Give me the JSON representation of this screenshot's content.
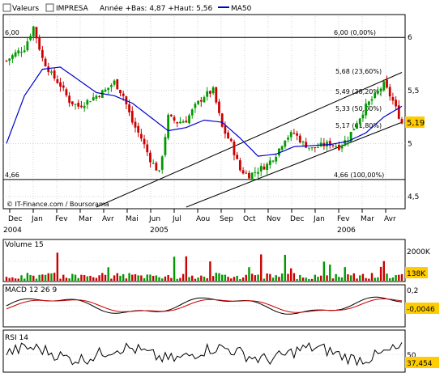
{
  "header": {
    "checkbox_label": "Valeurs",
    "security": "IMPRESA",
    "stats": "Année +Bas: 4,87 +Haut: 5,56",
    "ma_label": "MA50"
  },
  "colors": {
    "up": "#009a00",
    "down": "#cc0000",
    "ma": "#0000cc",
    "macd_signal": "#cc0000",
    "price_tag_bg": "#ffcc00",
    "volume_tag_bg": "#ffcc00",
    "grid": "#bbbbbb"
  },
  "copyright": "© IT-Finance.com / Boursorama",
  "price_panel": {
    "y_ticks": [
      "6",
      "5,5",
      "5",
      "4,5"
    ],
    "hlines": [
      {
        "value": 6.0,
        "left_label": "6,00",
        "right_label": "6,00 (0,00%)"
      },
      {
        "value": 4.66,
        "left_label": "4,66",
        "right_label": "4,66 (100,00%)"
      }
    ],
    "fib_levels": [
      {
        "value": 5.68,
        "label": "5,68 (23,60%)"
      },
      {
        "value": 5.49,
        "label": "5,49 (38,20%)"
      },
      {
        "value": 5.33,
        "label": "5,33 (50,00%)"
      },
      {
        "value": 5.17,
        "label": "5,17 (61,80%)"
      }
    ],
    "last_price": "5,19"
  },
  "x_axis": {
    "months": [
      "Dec",
      "Jan",
      "Fev",
      "Mar",
      "Avr",
      "Mai",
      "Jun",
      "Jul",
      "Aou",
      "Sep",
      "Oct",
      "Nov",
      "Dec",
      "Jan",
      "Fev",
      "Mar",
      "Avr"
    ],
    "years": [
      "2004",
      "2005",
      "2006"
    ]
  },
  "volume_panel": {
    "title": "Volume 15",
    "axis_label": "2000K",
    "last_value": "138K"
  },
  "macd_panel": {
    "title": "MACD 12 26 9",
    "axis_label": "0,2",
    "last_value": "-0,0046"
  },
  "rsi_panel": {
    "title": "RSI 14",
    "axis_label": "50",
    "last_value": "37,454"
  },
  "chart_data": {
    "type": "candlestick",
    "security": "IMPRESA",
    "period": [
      "Dec 2004",
      "Avr 2006"
    ],
    "ylim": [
      4.4,
      6.2
    ],
    "y_ticks": [
      4.5,
      5.0,
      5.5,
      6.0
    ],
    "close_trace": [
      [
        0,
        5.78
      ],
      [
        3,
        5.85
      ],
      [
        6,
        5.9
      ],
      [
        9,
        6.1
      ],
      [
        12,
        5.8
      ],
      [
        15,
        5.65
      ],
      [
        18,
        5.55
      ],
      [
        21,
        5.4
      ],
      [
        24,
        5.35
      ],
      [
        27,
        5.4
      ],
      [
        30,
        5.45
      ],
      [
        33,
        5.5
      ],
      [
        36,
        5.58
      ],
      [
        39,
        5.45
      ],
      [
        42,
        5.2
      ],
      [
        45,
        5.05
      ],
      [
        48,
        4.85
      ],
      [
        51,
        4.72
      ],
      [
        54,
        5.25
      ],
      [
        57,
        5.2
      ],
      [
        60,
        5.22
      ],
      [
        63,
        5.35
      ],
      [
        66,
        5.45
      ],
      [
        69,
        5.5
      ],
      [
        72,
        5.15
      ],
      [
        75,
        5.0
      ],
      [
        78,
        4.75
      ],
      [
        81,
        4.7
      ],
      [
        84,
        4.75
      ],
      [
        87,
        4.8
      ],
      [
        90,
        4.9
      ],
      [
        93,
        5.05
      ],
      [
        96,
        5.1
      ],
      [
        99,
        5.0
      ],
      [
        102,
        4.95
      ],
      [
        105,
        4.98
      ],
      [
        108,
        5.0
      ],
      [
        111,
        4.97
      ],
      [
        114,
        5.05
      ],
      [
        117,
        5.2
      ],
      [
        120,
        5.35
      ],
      [
        123,
        5.45
      ],
      [
        126,
        5.56
      ],
      [
        129,
        5.4
      ],
      [
        132,
        5.19
      ]
    ],
    "ma50": [
      [
        0,
        5.0
      ],
      [
        6,
        5.45
      ],
      [
        12,
        5.7
      ],
      [
        18,
        5.72
      ],
      [
        24,
        5.6
      ],
      [
        30,
        5.48
      ],
      [
        36,
        5.45
      ],
      [
        42,
        5.38
      ],
      [
        48,
        5.25
      ],
      [
        54,
        5.12
      ],
      [
        60,
        5.15
      ],
      [
        66,
        5.22
      ],
      [
        72,
        5.2
      ],
      [
        78,
        5.05
      ],
      [
        84,
        4.88
      ],
      [
        90,
        4.9
      ],
      [
        96,
        4.97
      ],
      [
        102,
        4.98
      ],
      [
        108,
        4.99
      ],
      [
        114,
        5.02
      ],
      [
        120,
        5.1
      ],
      [
        126,
        5.25
      ],
      [
        132,
        5.35
      ]
    ],
    "support_line": [
      [
        30,
        4.1
      ],
      [
        132,
        5.67
      ]
    ],
    "lower_channel": [
      [
        60,
        4.1
      ],
      [
        132,
        5.2
      ]
    ],
    "horizontal_levels": [
      6.0,
      4.66
    ],
    "fibonacci": [
      5.68,
      5.49,
      5.33,
      5.17
    ],
    "macd_last": -0.0046,
    "macd_axis": 0.2,
    "rsi_last": 37.454,
    "rsi_axis": 50,
    "volume_last_k": 138,
    "volume_axis_k": 2000
  }
}
